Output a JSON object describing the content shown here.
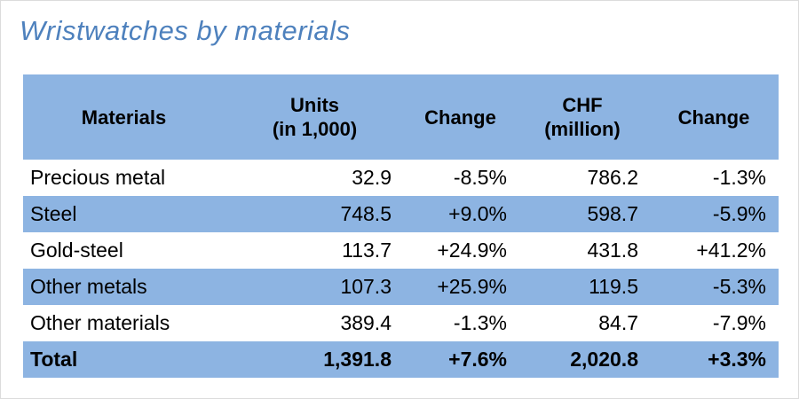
{
  "title": "Wristwatches by materials",
  "colors": {
    "title_color": "#4E81BD",
    "header_bg": "#8DB4E2",
    "band_bg": "#8DB4E2",
    "plain_bg": "#FFFFFF",
    "text_color": "#000000"
  },
  "table": {
    "columns": {
      "materials": {
        "line1": "Materials",
        "line2": ""
      },
      "units": {
        "line1": "Units",
        "line2": "(in 1,000)"
      },
      "change1": {
        "line1": "Change",
        "line2": ""
      },
      "chf": {
        "line1": "CHF",
        "line2": "(million)"
      },
      "change2": {
        "line1": "Change",
        "line2": ""
      }
    },
    "rows": [
      {
        "material": "Precious metal",
        "units": "32.9",
        "units_change": "-8.5%",
        "chf": "786.2",
        "chf_change": "-1.3%"
      },
      {
        "material": "Steel",
        "units": "748.5",
        "units_change": "+9.0%",
        "chf": "598.7",
        "chf_change": "-5.9%"
      },
      {
        "material": "Gold-steel",
        "units": "113.7",
        "units_change": "+24.9%",
        "chf": "431.8",
        "chf_change": "+41.2%"
      },
      {
        "material": "Other metals",
        "units": "107.3",
        "units_change": "+25.9%",
        "chf": "119.5",
        "chf_change": "-5.3%"
      },
      {
        "material": "Other materials",
        "units": "389.4",
        "units_change": "-1.3%",
        "chf": "84.7",
        "chf_change": "-7.9%"
      },
      {
        "material": "Total",
        "units": "1,391.8",
        "units_change": "+7.6%",
        "chf": "2,020.8",
        "chf_change": "+3.3%"
      }
    ]
  },
  "chart_data": {
    "type": "table",
    "title": "Wristwatches by materials",
    "columns": [
      "Materials",
      "Units (in 1,000)",
      "Change",
      "CHF (million)",
      "Change"
    ],
    "rows": [
      [
        "Precious metal",
        32.9,
        "-8.5%",
        786.2,
        "-1.3%"
      ],
      [
        "Steel",
        748.5,
        "+9.0%",
        598.7,
        "-5.9%"
      ],
      [
        "Gold-steel",
        113.7,
        "+24.9%",
        431.8,
        "+41.2%"
      ],
      [
        "Other metals",
        107.3,
        "+25.9%",
        119.5,
        "-5.3%"
      ],
      [
        "Other materials",
        389.4,
        "-1.3%",
        84.7,
        "-7.9%"
      ],
      [
        "Total",
        1391.8,
        "+7.6%",
        2020.8,
        "+3.3%"
      ]
    ],
    "notes": "Banded rows: Steel, Other metals and Total shaded #8DB4E2; header shaded #8DB4E2; Total row bold"
  }
}
